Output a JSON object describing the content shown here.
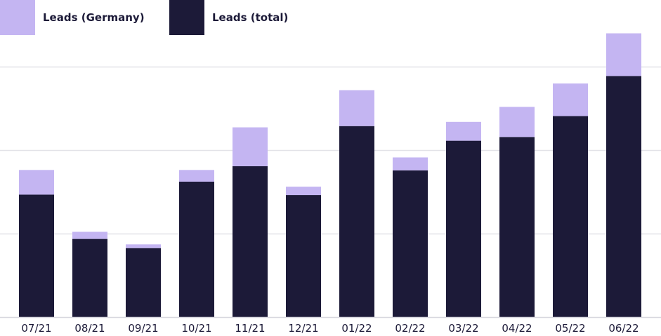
{
  "chart_data": {
    "type": "bar",
    "stacked": true,
    "categories": [
      "07/21",
      "08/21",
      "09/21",
      "10/21",
      "11/21",
      "12/21",
      "01/22",
      "02/22",
      "03/22",
      "04/22",
      "05/22",
      "06/22"
    ],
    "series": [
      {
        "name": "Leads (total)",
        "color": "#1c1a38",
        "values": [
          1465,
          935,
          825,
          1620,
          1805,
          1460,
          2285,
          1755,
          2110,
          2155,
          2405,
          2885
        ]
      },
      {
        "name": "Leads (Germany)",
        "color": "#c4b5f2",
        "values": [
          295,
          85,
          45,
          140,
          465,
          100,
          430,
          155,
          225,
          360,
          390,
          510
        ]
      }
    ],
    "ylim": [
      0,
      3500
    ],
    "y_gridlines": [
      1000,
      2000,
      3000
    ],
    "y_tick_labels_shown": false,
    "grid": true,
    "legend": {
      "placement": "top-left",
      "order": [
        "Leads (Germany)",
        "Leads (total)"
      ]
    },
    "title": "",
    "xlabel": "",
    "ylabel": ""
  }
}
